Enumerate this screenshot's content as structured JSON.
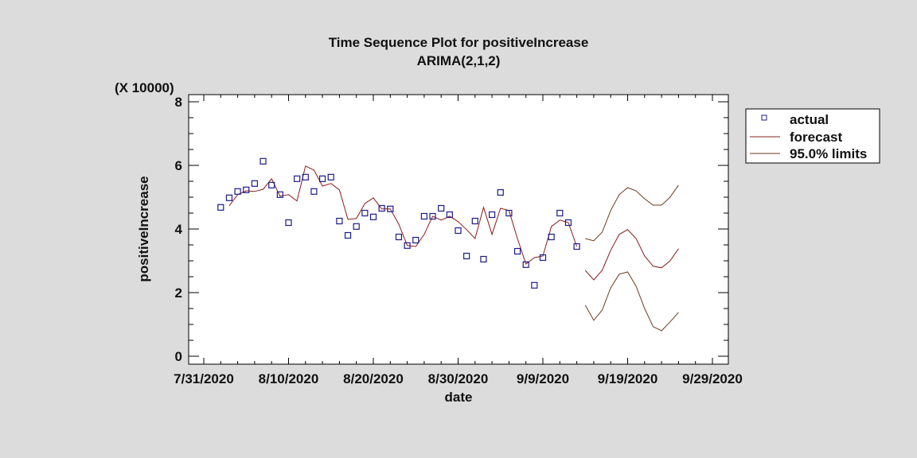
{
  "chart_data": {
    "type": "line",
    "title": "Time Sequence Plot for positiveIncrease",
    "subtitle": "ARIMA(2,1,2)",
    "xlabel": "date",
    "ylabel": "positiveIncrease",
    "y_multiplier_label": "(X 10000)",
    "xlim": [
      "7/31/2020",
      "9/29/2020"
    ],
    "ylim": [
      0,
      8
    ],
    "x_ticks": [
      "7/31/2020",
      "8/10/2020",
      "8/20/2020",
      "8/30/2020",
      "9/9/2020",
      "9/19/2020",
      "9/29/2020"
    ],
    "y_ticks": [
      "0",
      "2",
      "4",
      "6",
      "8"
    ],
    "legend": [
      "actual",
      "forecast",
      "95.0% limits"
    ],
    "legend_position": "right",
    "colors": {
      "actual": "#1c1c8a",
      "forecast": "#8b1c1c",
      "limits": "#6e3a1e"
    },
    "actual": {
      "start_date": "8/2/2020",
      "values": [
        4.68,
        4.98,
        5.18,
        5.23,
        5.43,
        6.13,
        5.38,
        5.08,
        4.2,
        5.58,
        5.63,
        5.18,
        5.58,
        5.63,
        4.25,
        3.8,
        4.08,
        4.5,
        4.38,
        4.65,
        4.63,
        3.75,
        3.48,
        3.65,
        4.4,
        4.4,
        4.65,
        4.45,
        3.95,
        3.15,
        4.25,
        3.05,
        4.45,
        5.15,
        4.5,
        3.3,
        2.88,
        2.23,
        3.1,
        3.75,
        4.5,
        4.2,
        3.45
      ]
    },
    "forecast_insample": {
      "start_date": "8/3/2020",
      "values": [
        4.73,
        5.08,
        5.2,
        5.18,
        5.25,
        5.58,
        5.03,
        5.08,
        4.88,
        5.98,
        5.85,
        5.35,
        5.43,
        5.23,
        4.3,
        4.33,
        4.8,
        4.98,
        4.63,
        4.63,
        4.15,
        3.48,
        3.45,
        3.83,
        4.4,
        4.28,
        4.4,
        4.23,
        3.98,
        3.7,
        4.68,
        3.83,
        4.65,
        4.58,
        3.7,
        2.9,
        3.1,
        3.15,
        4.08,
        4.28,
        4.2,
        3.45
      ]
    },
    "forecast_future": {
      "start_date": "9/14/2020",
      "values": [
        2.7,
        2.4,
        2.7,
        3.33,
        3.83,
        3.98,
        3.7,
        3.15,
        2.83,
        2.78,
        3.0,
        3.38
      ],
      "upper": [
        3.7,
        3.63,
        3.9,
        4.58,
        5.08,
        5.3,
        5.2,
        4.95,
        4.75,
        4.75,
        5.0,
        5.38
      ],
      "lower": [
        1.6,
        1.13,
        1.45,
        2.15,
        2.58,
        2.65,
        2.2,
        1.5,
        0.93,
        0.8,
        1.08,
        1.38
      ]
    },
    "x_start_day_offset": {
      "actual": 2,
      "forecast_insample": 3,
      "forecast_future": 45
    }
  }
}
